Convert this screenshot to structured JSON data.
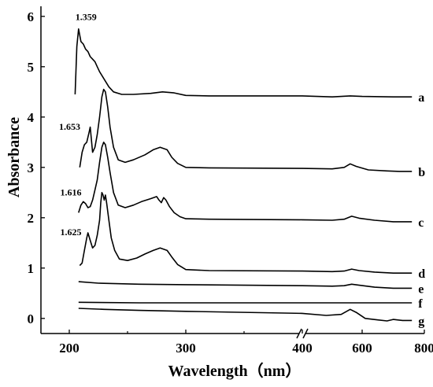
{
  "chart_data": {
    "type": "line",
    "title": "",
    "xlabel": "Wavelength（nm）",
    "ylabel": "Absorbance",
    "x_ticks": [
      200,
      300,
      400,
      600,
      800
    ],
    "y_ticks": [
      0,
      1,
      2,
      3,
      4,
      5,
      6
    ],
    "ylim": [
      -0.3,
      6.2
    ],
    "x_axis_break": "300-400 compressed; broken between 400 and 600",
    "grid": false,
    "series": [
      {
        "name": "a",
        "points": [
          [
            205,
            4.45
          ],
          [
            206.5,
            5.4
          ],
          [
            208,
            5.75
          ],
          [
            210,
            5.5
          ],
          [
            212,
            5.45
          ],
          [
            214,
            5.35
          ],
          [
            216,
            5.3
          ],
          [
            218,
            5.2
          ],
          [
            220,
            5.15
          ],
          [
            222,
            5.1
          ],
          [
            224,
            5.0
          ],
          [
            226,
            4.9
          ],
          [
            230,
            4.75
          ],
          [
            234,
            4.6
          ],
          [
            238,
            4.5
          ],
          [
            245,
            4.45
          ],
          [
            255,
            4.45
          ],
          [
            270,
            4.47
          ],
          [
            280,
            4.5
          ],
          [
            290,
            4.48
          ],
          [
            300,
            4.43
          ],
          [
            320,
            4.42
          ],
          [
            400,
            4.42
          ],
          [
            500,
            4.4
          ],
          [
            560,
            4.42
          ],
          [
            600,
            4.41
          ],
          [
            700,
            4.4
          ],
          [
            760,
            4.4
          ]
        ]
      },
      {
        "name": "b",
        "points": [
          [
            209,
            3.0
          ],
          [
            211,
            3.3
          ],
          [
            213,
            3.45
          ],
          [
            215,
            3.5
          ],
          [
            217,
            3.7
          ],
          [
            218,
            3.8
          ],
          [
            219,
            3.55
          ],
          [
            220,
            3.3
          ],
          [
            222,
            3.4
          ],
          [
            224,
            3.65
          ],
          [
            226,
            4.0
          ],
          [
            228,
            4.4
          ],
          [
            229.5,
            4.55
          ],
          [
            231,
            4.5
          ],
          [
            233,
            4.2
          ],
          [
            235,
            3.8
          ],
          [
            238,
            3.4
          ],
          [
            242,
            3.15
          ],
          [
            248,
            3.1
          ],
          [
            255,
            3.15
          ],
          [
            265,
            3.25
          ],
          [
            272,
            3.35
          ],
          [
            278,
            3.4
          ],
          [
            284,
            3.35
          ],
          [
            288,
            3.2
          ],
          [
            293,
            3.08
          ],
          [
            300,
            3.0
          ],
          [
            320,
            2.99
          ],
          [
            400,
            2.98
          ],
          [
            500,
            2.97
          ],
          [
            540,
            3.0
          ],
          [
            560,
            3.07
          ],
          [
            580,
            3.02
          ],
          [
            620,
            2.95
          ],
          [
            680,
            2.93
          ],
          [
            720,
            2.92
          ],
          [
            760,
            2.92
          ]
        ]
      },
      {
        "name": "c",
        "points": [
          [
            208,
            2.1
          ],
          [
            210,
            2.25
          ],
          [
            212,
            2.32
          ],
          [
            214,
            2.28
          ],
          [
            216,
            2.2
          ],
          [
            218,
            2.22
          ],
          [
            220,
            2.35
          ],
          [
            222,
            2.55
          ],
          [
            224,
            2.75
          ],
          [
            226,
            3.1
          ],
          [
            228,
            3.4
          ],
          [
            229.5,
            3.5
          ],
          [
            231,
            3.45
          ],
          [
            233,
            3.2
          ],
          [
            235,
            2.9
          ],
          [
            238,
            2.5
          ],
          [
            242,
            2.25
          ],
          [
            248,
            2.2
          ],
          [
            255,
            2.25
          ],
          [
            262,
            2.32
          ],
          [
            270,
            2.38
          ],
          [
            275,
            2.42
          ],
          [
            277,
            2.35
          ],
          [
            279,
            2.3
          ],
          [
            281,
            2.4
          ],
          [
            283,
            2.35
          ],
          [
            286,
            2.22
          ],
          [
            290,
            2.1
          ],
          [
            295,
            2.02
          ],
          [
            300,
            1.98
          ],
          [
            320,
            1.97
          ],
          [
            400,
            1.96
          ],
          [
            500,
            1.95
          ],
          [
            540,
            1.97
          ],
          [
            565,
            2.03
          ],
          [
            590,
            1.99
          ],
          [
            640,
            1.95
          ],
          [
            700,
            1.92
          ],
          [
            760,
            1.92
          ]
        ]
      },
      {
        "name": "d",
        "points": [
          [
            209,
            1.05
          ],
          [
            211,
            1.1
          ],
          [
            213,
            1.35
          ],
          [
            215,
            1.6
          ],
          [
            216,
            1.7
          ],
          [
            218,
            1.55
          ],
          [
            220,
            1.4
          ],
          [
            222,
            1.45
          ],
          [
            224,
            1.65
          ],
          [
            226,
            1.95
          ],
          [
            227,
            2.3
          ],
          [
            228,
            2.5
          ],
          [
            229,
            2.45
          ],
          [
            230,
            2.35
          ],
          [
            231,
            2.45
          ],
          [
            232,
            2.3
          ],
          [
            234,
            1.95
          ],
          [
            236,
            1.6
          ],
          [
            239,
            1.35
          ],
          [
            243,
            1.18
          ],
          [
            250,
            1.15
          ],
          [
            258,
            1.2
          ],
          [
            265,
            1.28
          ],
          [
            272,
            1.35
          ],
          [
            278,
            1.4
          ],
          [
            284,
            1.35
          ],
          [
            288,
            1.22
          ],
          [
            293,
            1.07
          ],
          [
            300,
            0.97
          ],
          [
            320,
            0.95
          ],
          [
            400,
            0.94
          ],
          [
            500,
            0.93
          ],
          [
            540,
            0.94
          ],
          [
            565,
            0.98
          ],
          [
            590,
            0.95
          ],
          [
            640,
            0.92
          ],
          [
            700,
            0.9
          ],
          [
            760,
            0.9
          ]
        ]
      },
      {
        "name": "e",
        "points": [
          [
            208,
            0.73
          ],
          [
            225,
            0.7
          ],
          [
            260,
            0.68
          ],
          [
            300,
            0.67
          ],
          [
            400,
            0.65
          ],
          [
            500,
            0.64
          ],
          [
            540,
            0.65
          ],
          [
            565,
            0.68
          ],
          [
            590,
            0.66
          ],
          [
            640,
            0.62
          ],
          [
            700,
            0.6
          ],
          [
            760,
            0.6
          ]
        ]
      },
      {
        "name": "f",
        "points": [
          [
            208,
            0.32
          ],
          [
            260,
            0.31
          ],
          [
            300,
            0.31
          ],
          [
            400,
            0.31
          ],
          [
            500,
            0.31
          ],
          [
            600,
            0.31
          ],
          [
            700,
            0.31
          ],
          [
            760,
            0.31
          ]
        ]
      },
      {
        "name": "g",
        "points": [
          [
            208,
            0.2
          ],
          [
            230,
            0.18
          ],
          [
            260,
            0.16
          ],
          [
            300,
            0.14
          ],
          [
            400,
            0.1
          ],
          [
            480,
            0.06
          ],
          [
            530,
            0.08
          ],
          [
            560,
            0.18
          ],
          [
            580,
            0.12
          ],
          [
            610,
            0.0
          ],
          [
            650,
            -0.03
          ],
          [
            680,
            -0.05
          ],
          [
            700,
            -0.02
          ],
          [
            730,
            -0.04
          ],
          [
            760,
            -0.04
          ]
        ]
      }
    ],
    "annotations": [
      {
        "text": "1.359",
        "x": 212,
        "y": 5.93
      },
      {
        "text": "1.653",
        "x": 198,
        "y": 3.75
      },
      {
        "text": "1.616",
        "x": 199,
        "y": 2.44
      },
      {
        "text": "1.625",
        "x": 199,
        "y": 1.65
      }
    ]
  }
}
